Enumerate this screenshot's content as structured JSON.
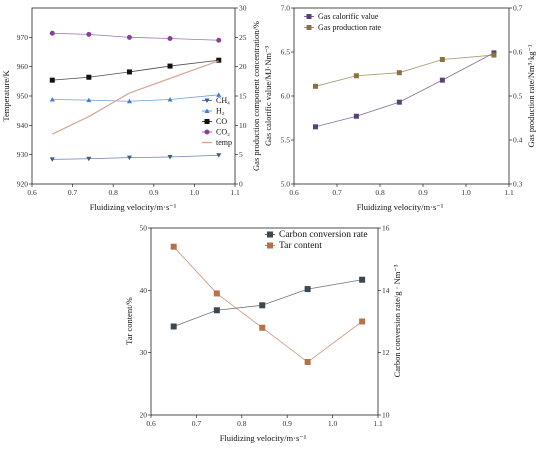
{
  "chart_data": [
    {
      "type": "line",
      "title": "",
      "xlabel": "Fluidizing velocity/m·s⁻¹",
      "ylabel_left": "Temperature/K",
      "ylabel_right": "Gas production component concentration/%",
      "xlim": [
        0.6,
        1.1
      ],
      "ylim_left": [
        920,
        980
      ],
      "ylim_right": [
        0,
        30
      ],
      "x_ticks": [
        "0.6",
        "0.7",
        "0.8",
        "0.9",
        "1.0",
        "1.1"
      ],
      "y_left_ticks": [
        "920",
        "930",
        "940",
        "950",
        "960",
        "970"
      ],
      "y_right_ticks": [
        "0",
        "5",
        "10",
        "15",
        "20",
        "25",
        "30"
      ],
      "legend_position": "right",
      "series": [
        {
          "name": "CH₄",
          "axis": "right",
          "marker": "triangle-down",
          "color": "#3b5b8a",
          "x": [
            0.65,
            0.74,
            0.84,
            0.94,
            1.06
          ],
          "values": [
            4.2,
            4.3,
            4.5,
            4.6,
            4.9
          ]
        },
        {
          "name": "H₂",
          "axis": "right",
          "marker": "triangle-up",
          "color": "#3f7fd0",
          "x": [
            0.65,
            0.74,
            0.84,
            0.94,
            1.06
          ],
          "values": [
            14.4,
            14.3,
            14.1,
            14.4,
            15.2
          ]
        },
        {
          "name": "CO",
          "axis": "right",
          "marker": "square",
          "color": "#111111",
          "x": [
            0.65,
            0.74,
            0.84,
            0.94,
            1.06
          ],
          "values": [
            17.7,
            18.2,
            19.1,
            20.1,
            21.1
          ]
        },
        {
          "name": "CO₂",
          "axis": "right",
          "marker": "circle",
          "color": "#8a3f9e",
          "x": [
            0.65,
            0.74,
            0.84,
            0.94,
            1.06
          ],
          "values": [
            25.7,
            25.5,
            25.0,
            24.8,
            24.5
          ]
        },
        {
          "name": "temp",
          "axis": "left",
          "marker": "none",
          "color": "#d4a090",
          "x": [
            0.65,
            0.74,
            0.84,
            0.94,
            1.06
          ],
          "values": [
            937,
            943,
            951,
            956,
            962
          ]
        }
      ]
    },
    {
      "type": "scatter",
      "title": "",
      "xlabel": "Fluidizing velocity/m·s⁻¹",
      "ylabel_left": "Gas calorific value/MJ·Nm⁻³",
      "ylabel_right": "Gas production rate/Nm³·kg⁻¹",
      "xlim": [
        0.6,
        1.1
      ],
      "ylim_left": [
        5.0,
        7.0
      ],
      "ylim_right": [
        0.3,
        0.7
      ],
      "x_ticks": [
        "0.6",
        "0.7",
        "0.8",
        "0.9",
        "1.0",
        "1.1"
      ],
      "y_left_ticks": [
        "5.0",
        "5.5",
        "6.0",
        "6.5",
        "7.0"
      ],
      "y_right_ticks": [
        "0.3",
        "0.4",
        "0.5",
        "0.6",
        "0.7"
      ],
      "legend_position": "top-left",
      "series": [
        {
          "name": "Gas calorific value",
          "axis": "left",
          "marker": "square",
          "color": "#5a3f7a",
          "x": [
            0.65,
            0.745,
            0.845,
            0.945,
            1.065
          ],
          "values": [
            5.65,
            5.77,
            5.93,
            6.18,
            6.49
          ]
        },
        {
          "name": "Gas production rate",
          "axis": "right",
          "marker": "square",
          "color": "#8b7340",
          "x": [
            0.65,
            0.745,
            0.845,
            0.945,
            1.065
          ],
          "values": [
            0.522,
            0.546,
            0.553,
            0.583,
            0.593
          ]
        }
      ]
    },
    {
      "type": "line",
      "title": "",
      "xlabel": "Fluidizing velocity/m·s⁻¹",
      "ylabel_left": "Tar content/%",
      "ylabel_right": "Carbon conversion rate/g · Nm⁻³",
      "xlim": [
        0.6,
        1.1
      ],
      "ylim_left": [
        20,
        50
      ],
      "ylim_right": [
        10,
        16
      ],
      "x_ticks": [
        "0.6",
        "0.7",
        "0.8",
        "0.9",
        "1.0",
        "1.1"
      ],
      "y_left_ticks": [
        "20",
        "30",
        "40",
        "50"
      ],
      "y_right_ticks": [
        "10",
        "12",
        "14",
        "16"
      ],
      "legend_position": "top-right",
      "series": [
        {
          "name": "Carbon conversion rate",
          "axis": "left",
          "marker": "square",
          "color": "#3d4750",
          "x": [
            0.65,
            0.745,
            0.845,
            0.945,
            1.065
          ],
          "values": [
            34.2,
            36.8,
            37.6,
            40.2,
            41.7
          ]
        },
        {
          "name": "Tar content",
          "axis": "right",
          "marker": "square",
          "color": "#b5714a",
          "x": [
            0.65,
            0.745,
            0.845,
            0.945,
            1.065
          ],
          "values": [
            15.4,
            13.9,
            12.8,
            11.7,
            13.0
          ]
        }
      ]
    }
  ]
}
